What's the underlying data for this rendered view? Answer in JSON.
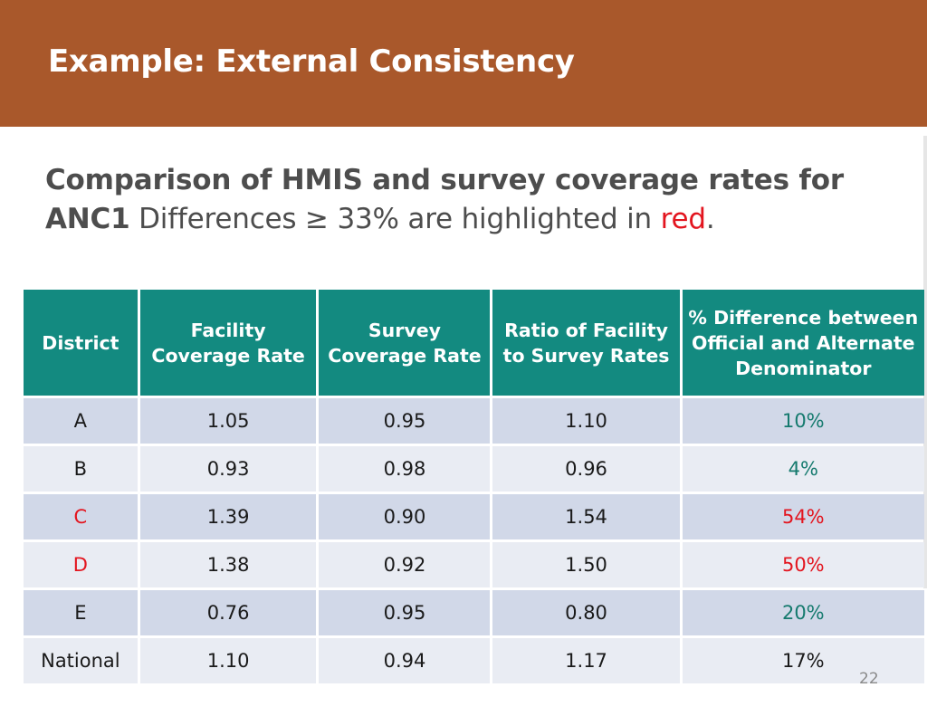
{
  "slide": {
    "title": "Example: External Consistency",
    "subtitle_bold": "Comparison of HMIS and survey coverage rates for ANC1",
    "subtitle_normal": " Differences ≥ 33% are highlighted in ",
    "subtitle_red": "red",
    "subtitle_end": ".",
    "page_number": "22"
  },
  "colors": {
    "header_bg": "#a9582b",
    "table_header_bg": "#138a80",
    "row_dark": "#d1d8e8",
    "row_light": "#e9ecf3",
    "highlight_red": "#e3151f",
    "ok_green": "#157a6e"
  },
  "table": {
    "headers": [
      "District",
      "Facility Coverage Rate",
      "Survey Coverage Rate",
      "Ratio of Facility to Survey Rates",
      "% Difference between Official and Alternate Denominator"
    ],
    "rows": [
      {
        "district": "A",
        "facility": "1.05",
        "survey": "0.95",
        "ratio": "1.10",
        "diff": "10%"
      },
      {
        "district": "B",
        "facility": "0.93",
        "survey": "0.98",
        "ratio": "0.96",
        "diff": "4%"
      },
      {
        "district": "C",
        "facility": "1.39",
        "survey": "0.90",
        "ratio": "1.54",
        "diff": "54%"
      },
      {
        "district": "D",
        "facility": "1.38",
        "survey": "0.92",
        "ratio": "1.50",
        "diff": "50%"
      },
      {
        "district": "E",
        "facility": "0.76",
        "survey": "0.95",
        "ratio": "0.80",
        "diff": "20%"
      },
      {
        "district": "National",
        "facility": "1.10",
        "survey": "0.94",
        "ratio": "1.17",
        "diff": "17%"
      }
    ]
  }
}
